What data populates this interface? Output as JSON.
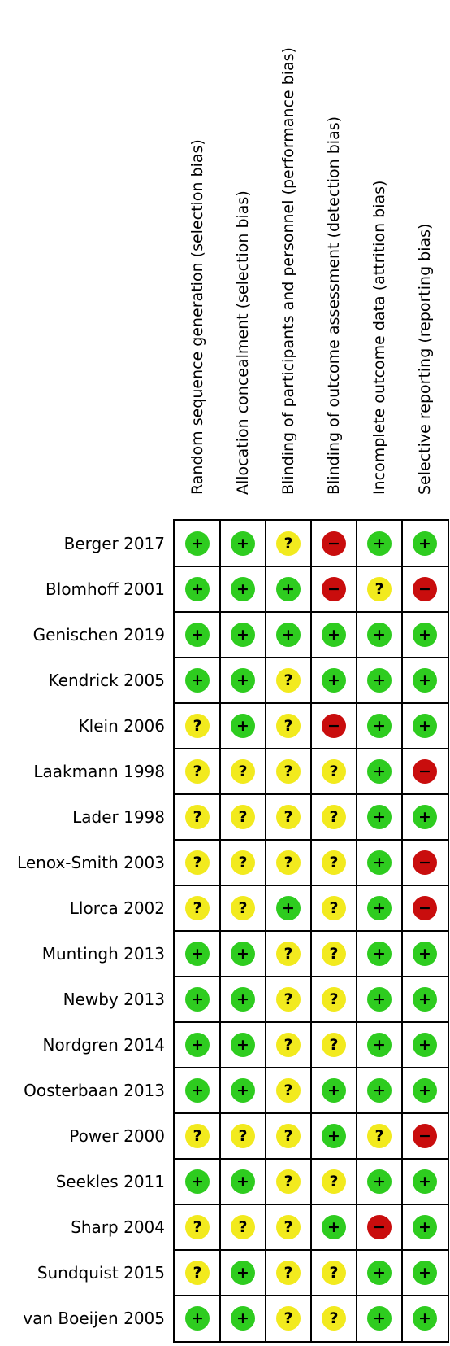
{
  "domains": [
    "Random sequence generation (selection bias)",
    "Allocation concealment (selection bias)",
    "Blinding of participants and personnel (performance bias)",
    "Blinding of outcome assessment (detection bias)",
    "Incomplete outcome data (attrition bias)",
    "Selective reporting (reporting bias)"
  ],
  "symbols": {
    "low": "+",
    "unclear": "?",
    "high": "−"
  },
  "colors": {
    "low": "#2ecc1f",
    "unclear": "#f2ea1e",
    "high": "#c90d0d"
  },
  "studies": [
    {
      "name": "Berger 2017",
      "ratings": [
        "low",
        "low",
        "unclear",
        "high",
        "low",
        "low"
      ]
    },
    {
      "name": "Blomhoff 2001",
      "ratings": [
        "low",
        "low",
        "low",
        "high",
        "unclear",
        "high"
      ]
    },
    {
      "name": "Genischen 2019",
      "ratings": [
        "low",
        "low",
        "low",
        "low",
        "low",
        "low"
      ]
    },
    {
      "name": "Kendrick 2005",
      "ratings": [
        "low",
        "low",
        "unclear",
        "low",
        "low",
        "low"
      ]
    },
    {
      "name": "Klein 2006",
      "ratings": [
        "unclear",
        "low",
        "unclear",
        "high",
        "low",
        "low"
      ]
    },
    {
      "name": "Laakmann 1998",
      "ratings": [
        "unclear",
        "unclear",
        "unclear",
        "unclear",
        "low",
        "high"
      ]
    },
    {
      "name": "Lader 1998",
      "ratings": [
        "unclear",
        "unclear",
        "unclear",
        "unclear",
        "low",
        "low"
      ]
    },
    {
      "name": "Lenox-Smith 2003",
      "ratings": [
        "unclear",
        "unclear",
        "unclear",
        "unclear",
        "low",
        "high"
      ]
    },
    {
      "name": "Llorca 2002",
      "ratings": [
        "unclear",
        "unclear",
        "low",
        "unclear",
        "low",
        "high"
      ]
    },
    {
      "name": "Muntingh 2013",
      "ratings": [
        "low",
        "low",
        "unclear",
        "unclear",
        "low",
        "low"
      ]
    },
    {
      "name": "Newby 2013",
      "ratings": [
        "low",
        "low",
        "unclear",
        "unclear",
        "low",
        "low"
      ]
    },
    {
      "name": "Nordgren 2014",
      "ratings": [
        "low",
        "low",
        "unclear",
        "unclear",
        "low",
        "low"
      ]
    },
    {
      "name": "Oosterbaan 2013",
      "ratings": [
        "low",
        "low",
        "unclear",
        "low",
        "low",
        "low"
      ]
    },
    {
      "name": "Power 2000",
      "ratings": [
        "unclear",
        "unclear",
        "unclear",
        "low",
        "unclear",
        "high"
      ]
    },
    {
      "name": "Seekles 2011",
      "ratings": [
        "low",
        "low",
        "unclear",
        "unclear",
        "low",
        "low"
      ]
    },
    {
      "name": "Sharp 2004",
      "ratings": [
        "unclear",
        "unclear",
        "unclear",
        "low",
        "high",
        "low"
      ]
    },
    {
      "name": "Sundquist 2015",
      "ratings": [
        "unclear",
        "low",
        "unclear",
        "unclear",
        "low",
        "low"
      ]
    },
    {
      "name": "van Boeijen 2005",
      "ratings": [
        "low",
        "low",
        "unclear",
        "unclear",
        "low",
        "low"
      ]
    }
  ]
}
